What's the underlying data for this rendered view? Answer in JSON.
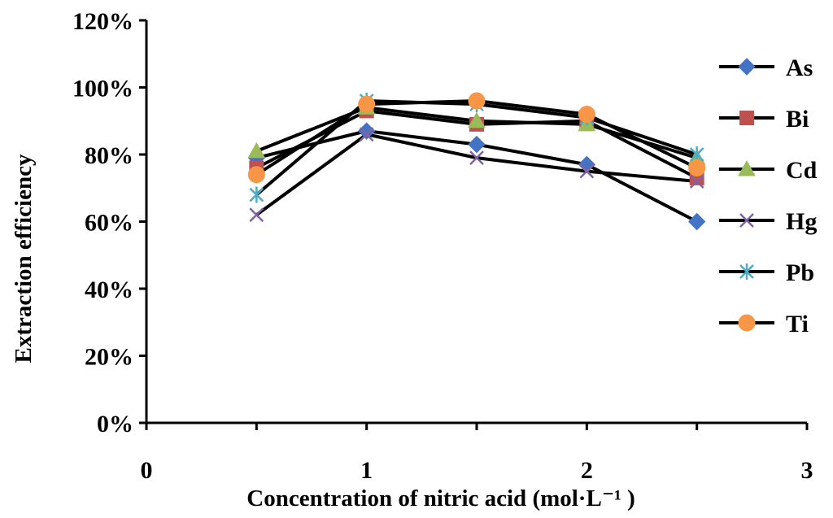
{
  "chart_data": {
    "type": "line",
    "xlabel": "Concentration of nitric acid (mol·L⁻¹ )",
    "ylabel": "Extraction efficiency",
    "xlim": [
      0,
      3
    ],
    "ylim": [
      0,
      120
    ],
    "x_ticks": [
      "0",
      "1",
      "2",
      "3"
    ],
    "y_ticks": [
      "0%",
      "20%",
      "40%",
      "60%",
      "80%",
      "100%",
      "120%"
    ],
    "grid": false,
    "legend_position": "right",
    "x": [
      0.5,
      1,
      1.5,
      2,
      2.5
    ],
    "series": [
      {
        "name": "As",
        "values": [
          79,
          87,
          83,
          77,
          60
        ],
        "marker": "diamond",
        "color": "#4472C4"
      },
      {
        "name": "Bi",
        "values": [
          76,
          93,
          89,
          90,
          73
        ],
        "marker": "square",
        "color": "#C0504D"
      },
      {
        "name": "Cd",
        "values": [
          81,
          94,
          90,
          89,
          79
        ],
        "marker": "triangle",
        "color": "#9BBB59"
      },
      {
        "name": "Hg",
        "values": [
          62,
          86,
          79,
          75,
          72
        ],
        "marker": "x",
        "color": "#8064A2"
      },
      {
        "name": "Pb",
        "values": [
          68,
          96,
          95,
          91,
          80
        ],
        "marker": "star",
        "color": "#4BACC6"
      },
      {
        "name": "Ti",
        "values": [
          74,
          95,
          96,
          92,
          76
        ],
        "marker": "circle",
        "color": "#F79646"
      }
    ],
    "line_color": "#000000"
  }
}
